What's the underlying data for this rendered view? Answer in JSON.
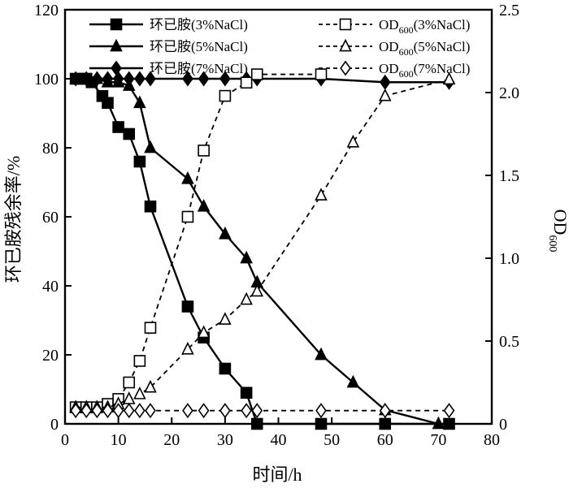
{
  "chart_data": {
    "type": "line",
    "xlabel": "时间/h",
    "ylabel_left": "环已胺残余率/%",
    "ylabel_right": "OD",
    "ylabel_right_sub": "600",
    "xlim": [
      0,
      80
    ],
    "ylim_left": [
      0,
      120
    ],
    "ylim_right": [
      0,
      2.5
    ],
    "xticks": [
      "0",
      "10",
      "20",
      "30",
      "40",
      "50",
      "60",
      "70",
      "80"
    ],
    "yticks_left": [
      "0",
      "20",
      "40",
      "60",
      "80",
      "100",
      "120"
    ],
    "yticks_right": [
      "0",
      "0.5",
      "1.0",
      "1.5",
      "2.0",
      "2.5"
    ],
    "grid": false,
    "legend_placement": "top",
    "series": [
      {
        "name": "环已胺(3%NaCl)",
        "axis": "left",
        "style": "solid",
        "marker": "square-filled",
        "x": [
          2,
          3,
          4,
          5,
          7,
          8,
          10,
          12,
          14,
          16,
          23,
          26,
          30,
          34,
          36,
          48,
          60,
          72
        ],
        "y": [
          100,
          100,
          100,
          99,
          95,
          93,
          86,
          84,
          76,
          63,
          34,
          25,
          16,
          9,
          0,
          0,
          0,
          0
        ]
      },
      {
        "name": "环已胺(5%NaCl)",
        "axis": "left",
        "style": "solid",
        "marker": "triangle-filled",
        "x": [
          2,
          4,
          6,
          8,
          10,
          12,
          14,
          16,
          23,
          26,
          30,
          34,
          36,
          48,
          54,
          60,
          70
        ],
        "y": [
          100,
          100,
          100,
          99,
          99,
          98,
          93,
          80,
          71,
          63,
          55,
          48,
          41,
          20,
          12,
          4,
          0
        ]
      },
      {
        "name": "环已胺(7%NaCl)",
        "axis": "left",
        "style": "solid",
        "marker": "diamond-filled",
        "x": [
          2,
          4,
          6,
          8,
          10,
          12,
          14,
          16,
          23,
          26,
          30,
          34,
          36,
          48,
          60,
          72
        ],
        "y": [
          100,
          100,
          100,
          100,
          100,
          100,
          100,
          100,
          100,
          100,
          100,
          100,
          100,
          100,
          99,
          99
        ]
      },
      {
        "name": "OD600(3%NaCl)",
        "legend_main": "OD",
        "legend_sub": "600",
        "legend_tail": "(3%NaCl)",
        "axis": "right",
        "style": "dashed",
        "marker": "square-open",
        "x": [
          2,
          4,
          6,
          8,
          10,
          12,
          14,
          16,
          23,
          26,
          30,
          34,
          36,
          48
        ],
        "y": [
          0.1,
          0.1,
          0.1,
          0.12,
          0.15,
          0.25,
          0.38,
          0.58,
          1.25,
          1.65,
          1.98,
          2.06,
          2.11,
          2.11
        ]
      },
      {
        "name": "OD600(5%NaCl)",
        "legend_main": "OD",
        "legend_sub": "600",
        "legend_tail": "(5%NaCl)",
        "axis": "right",
        "style": "dashed",
        "marker": "triangle-open",
        "x": [
          2,
          4,
          6,
          8,
          10,
          12,
          14,
          16,
          23,
          26,
          30,
          34,
          36,
          48,
          54,
          60,
          72
        ],
        "y": [
          0.1,
          0.1,
          0.1,
          0.1,
          0.12,
          0.15,
          0.18,
          0.22,
          0.45,
          0.55,
          0.63,
          0.75,
          0.8,
          1.38,
          1.7,
          1.98,
          2.08
        ]
      },
      {
        "name": "OD600(7%NaCl)",
        "legend_main": "OD",
        "legend_sub": "600",
        "legend_tail": "(7%NaCl)",
        "axis": "right",
        "style": "dashed",
        "marker": "diamond-open",
        "x": [
          2,
          4,
          6,
          8,
          10,
          12,
          14,
          16,
          23,
          26,
          30,
          34,
          36,
          48,
          60,
          72
        ],
        "y": [
          0.08,
          0.08,
          0.08,
          0.08,
          0.08,
          0.08,
          0.08,
          0.08,
          0.08,
          0.08,
          0.08,
          0.08,
          0.08,
          0.08,
          0.08,
          0.08
        ]
      }
    ]
  }
}
